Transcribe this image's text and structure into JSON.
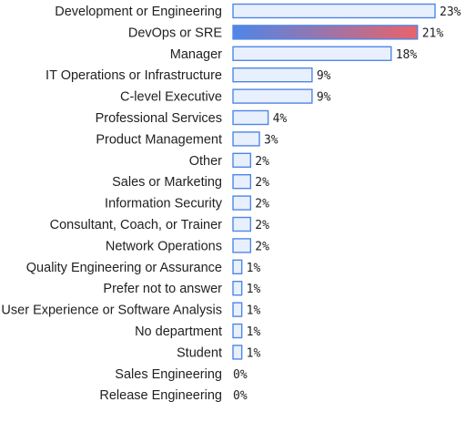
{
  "chart_data": {
    "type": "bar",
    "orientation": "horizontal",
    "title": "",
    "xlabel": "",
    "ylabel": "",
    "categories": [
      "Development or Engineering",
      "DevOps or SRE",
      "Manager",
      "IT Operations or Infrastructure",
      "C-level Executive",
      "Professional Services",
      "Product Management",
      "Other",
      "Sales or Marketing",
      "Information Security",
      "Consultant, Coach, or Trainer",
      "Network Operations",
      "Quality Engineering or Assurance",
      "Prefer not to answer",
      "User Experience or Software Analysis",
      "No department",
      "Student",
      "Sales Engineering",
      "Release Engineering"
    ],
    "values": [
      23,
      21,
      18,
      9,
      9,
      4,
      3,
      2,
      2,
      2,
      2,
      2,
      1,
      1,
      1,
      1,
      1,
      0,
      0
    ],
    "value_labels": [
      "23%",
      "21%",
      "18%",
      "9%",
      "9%",
      "4%",
      "3%",
      "2%",
      "2%",
      "2%",
      "2%",
      "2%",
      "1%",
      "1%",
      "1%",
      "1%",
      "1%",
      "0%",
      "0%"
    ],
    "highlight_index": 1,
    "xlim": [
      0,
      23
    ],
    "grid": false,
    "colors": {
      "bar_fill": "#e8f0fe",
      "bar_stroke": "#4f86e8",
      "highlight_start": "#4f86e8",
      "highlight_end": "#e8636b"
    }
  }
}
